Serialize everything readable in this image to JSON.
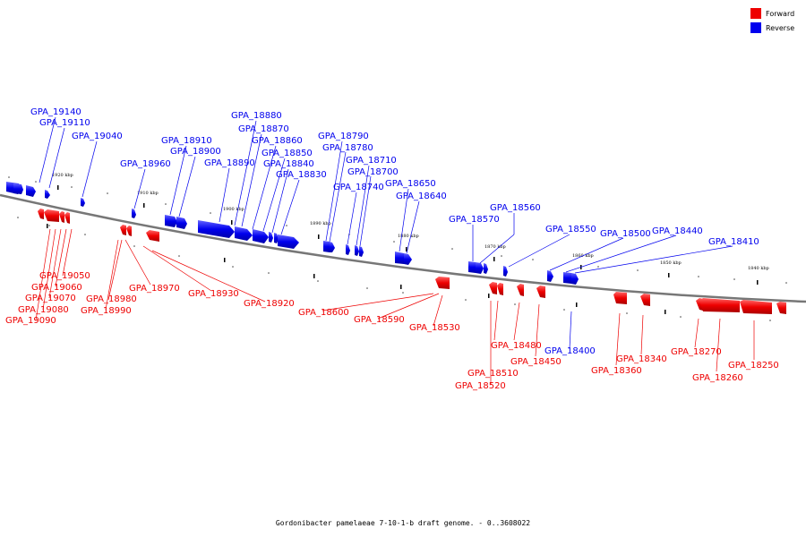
{
  "colors": {
    "forward": "#ee0000",
    "reverse": "#0000ee",
    "axis": "#888888"
  },
  "legend": [
    {
      "strand": "forward",
      "label": "Forward"
    },
    {
      "strand": "reverse",
      "label": "Reverse"
    }
  ],
  "caption": "Gordonibacter pamelaeae 7-10-1-b draft genome. - 0..3608022",
  "ticks": [
    "1920 kbp",
    "1910 kbp",
    "1900 kbp",
    "1890 kbp",
    "1880 kbp",
    "1870 kbp",
    "1860 kbp",
    "1850 kbp",
    "1840 kbp"
  ],
  "genes": [
    {
      "label": "GPA_19140",
      "strand": "reverse"
    },
    {
      "label": "GPA_19110",
      "strand": "reverse"
    },
    {
      "label": "GPA_19040",
      "strand": "reverse"
    },
    {
      "label": "GPA_18960",
      "strand": "reverse"
    },
    {
      "label": "GPA_18910",
      "strand": "reverse"
    },
    {
      "label": "GPA_18900",
      "strand": "reverse"
    },
    {
      "label": "GPA_18890",
      "strand": "reverse"
    },
    {
      "label": "GPA_18880",
      "strand": "reverse"
    },
    {
      "label": "GPA_18870",
      "strand": "reverse"
    },
    {
      "label": "GPA_18860",
      "strand": "reverse"
    },
    {
      "label": "GPA_18850",
      "strand": "reverse"
    },
    {
      "label": "GPA_18840",
      "strand": "reverse"
    },
    {
      "label": "GPA_18830",
      "strand": "reverse"
    },
    {
      "label": "GPA_18790",
      "strand": "reverse"
    },
    {
      "label": "GPA_18780",
      "strand": "reverse"
    },
    {
      "label": "GPA_18710",
      "strand": "reverse"
    },
    {
      "label": "GPA_18700",
      "strand": "reverse"
    },
    {
      "label": "GPA_18740",
      "strand": "reverse"
    },
    {
      "label": "GPA_18650",
      "strand": "reverse"
    },
    {
      "label": "GPA_18640",
      "strand": "reverse"
    },
    {
      "label": "GPA_18570",
      "strand": "reverse"
    },
    {
      "label": "GPA_18560",
      "strand": "reverse"
    },
    {
      "label": "GPA_18550",
      "strand": "reverse"
    },
    {
      "label": "GPA_18500",
      "strand": "reverse"
    },
    {
      "label": "GPA_18440",
      "strand": "reverse"
    },
    {
      "label": "GPA_18410",
      "strand": "reverse"
    },
    {
      "label": "GPA_18400",
      "strand": "reverse"
    },
    {
      "label": "GPA_19050",
      "strand": "forward"
    },
    {
      "label": "GPA_19060",
      "strand": "forward"
    },
    {
      "label": "GPA_19070",
      "strand": "forward"
    },
    {
      "label": "GPA_19080",
      "strand": "forward"
    },
    {
      "label": "GPA_19090",
      "strand": "forward"
    },
    {
      "label": "GPA_18980",
      "strand": "forward"
    },
    {
      "label": "GPA_18990",
      "strand": "forward"
    },
    {
      "label": "GPA_18970",
      "strand": "forward"
    },
    {
      "label": "GPA_18930",
      "strand": "forward"
    },
    {
      "label": "GPA_18920",
      "strand": "forward"
    },
    {
      "label": "GPA_18600",
      "strand": "forward"
    },
    {
      "label": "GPA_18590",
      "strand": "forward"
    },
    {
      "label": "GPA_18530",
      "strand": "forward"
    },
    {
      "label": "GPA_18510",
      "strand": "forward"
    },
    {
      "label": "GPA_18520",
      "strand": "forward"
    },
    {
      "label": "GPA_18480",
      "strand": "forward"
    },
    {
      "label": "GPA_18450",
      "strand": "forward"
    },
    {
      "label": "GPA_18360",
      "strand": "forward"
    },
    {
      "label": "GPA_18340",
      "strand": "forward"
    },
    {
      "label": "GPA_18270",
      "strand": "forward"
    },
    {
      "label": "GPA_18260",
      "strand": "forward"
    },
    {
      "label": "GPA_18250",
      "strand": "forward"
    }
  ]
}
